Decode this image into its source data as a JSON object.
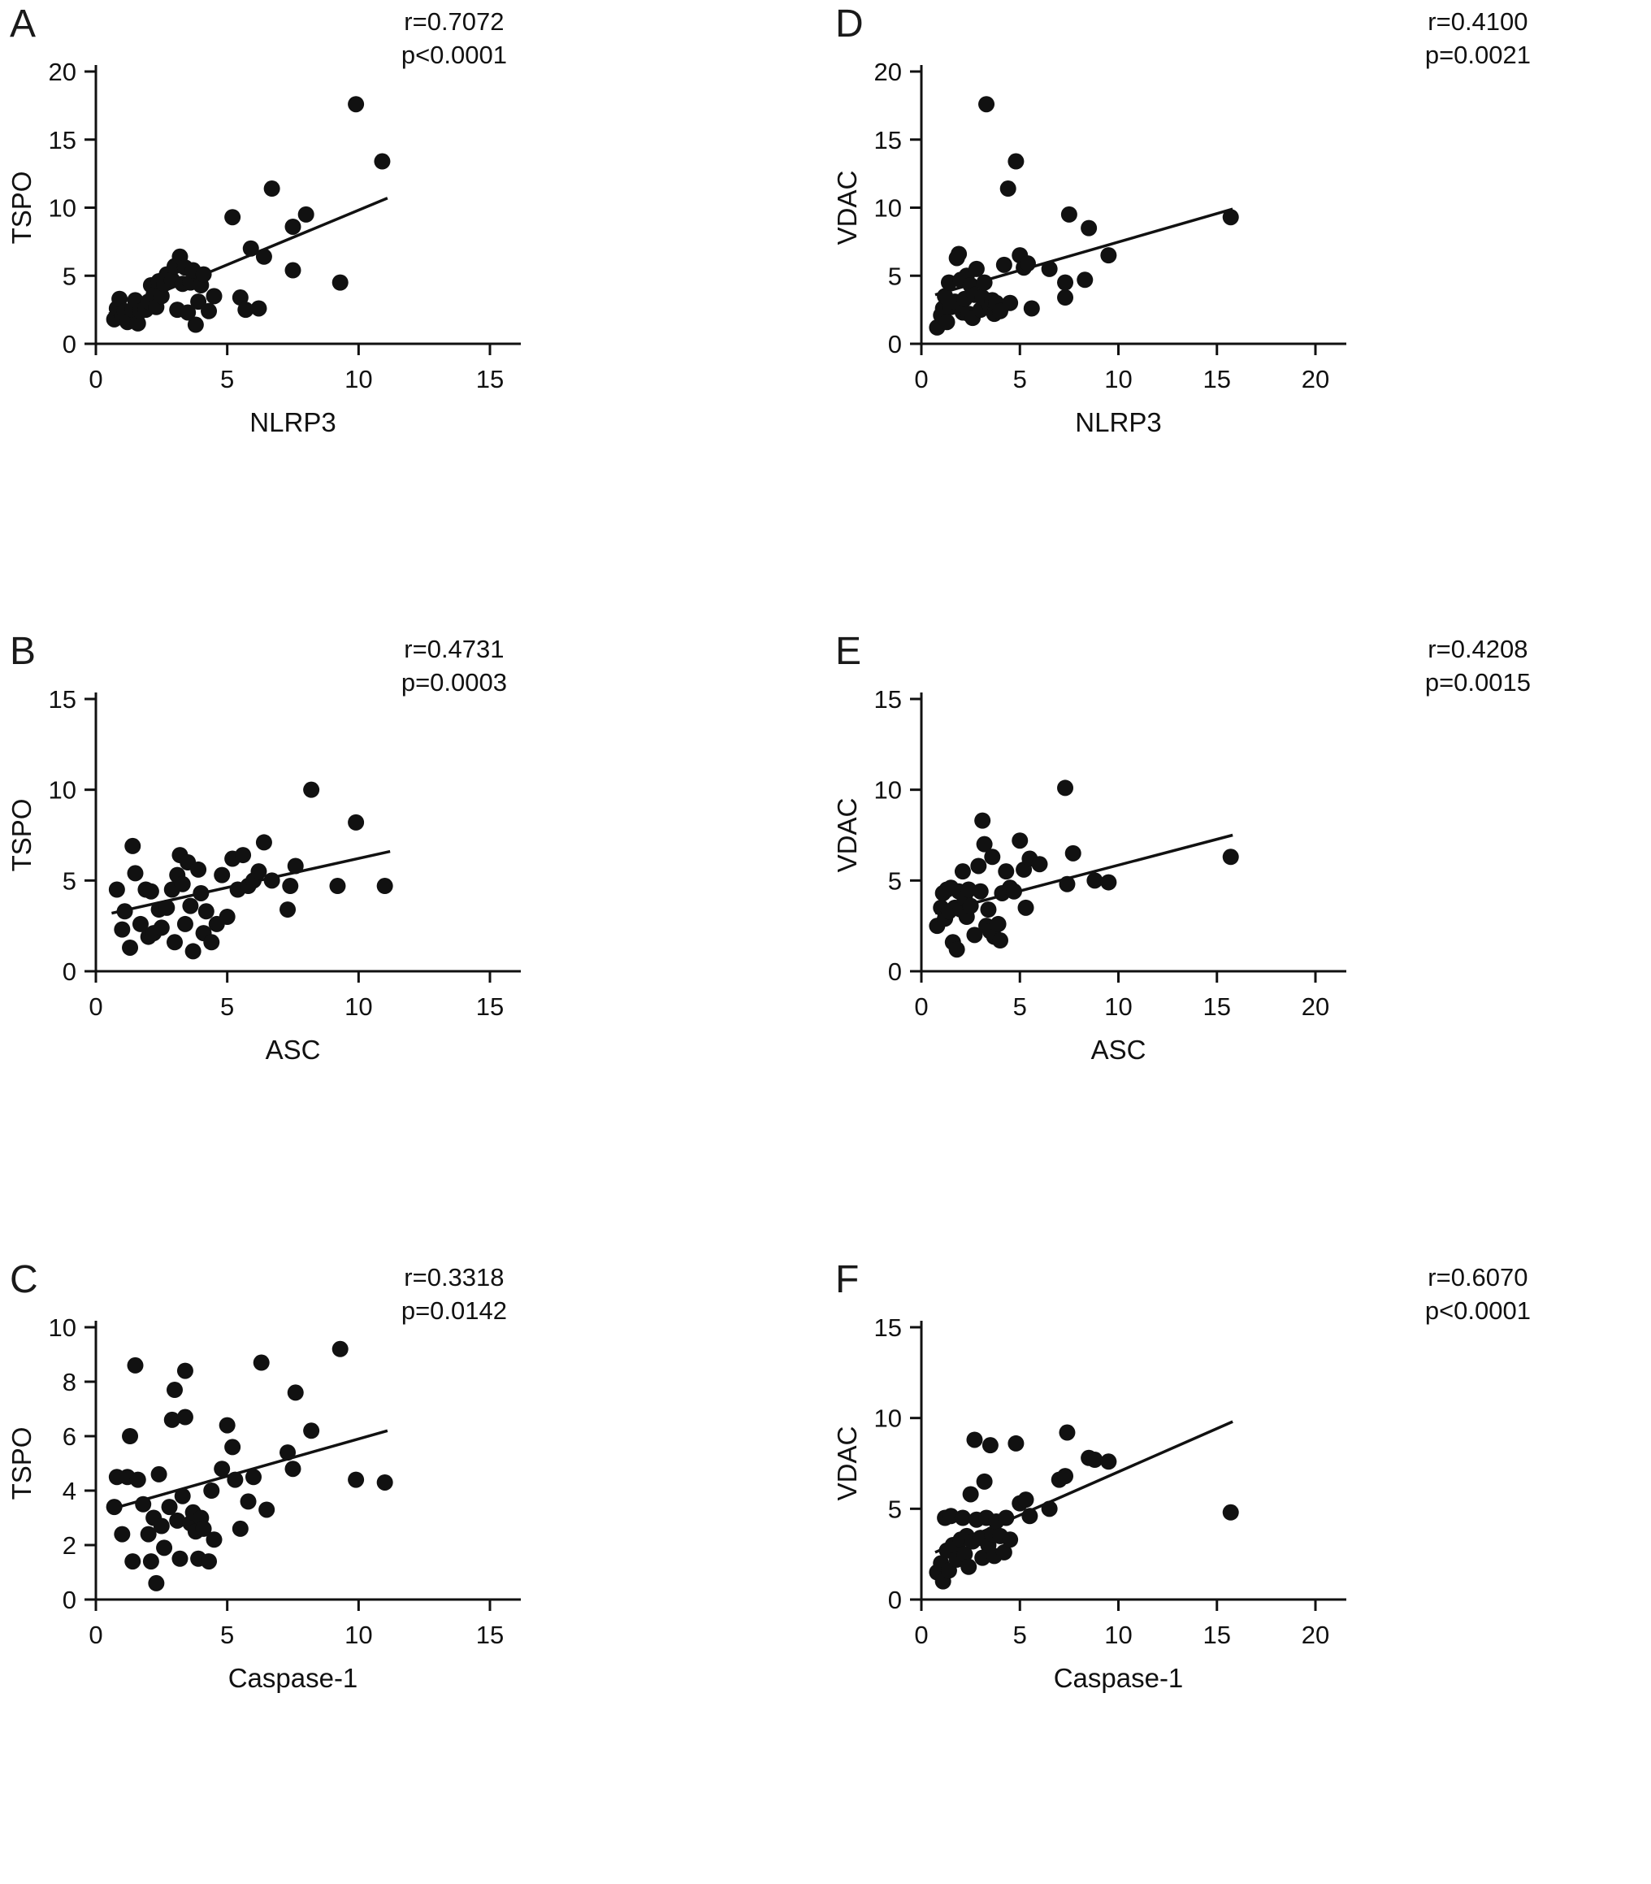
{
  "colors": {
    "ink": "#111111",
    "background": "#ffffff"
  },
  "chart_data": [
    {
      "panel": "A",
      "type": "scatter",
      "r_label": "r=0.7072",
      "p_label": "p<0.0001",
      "xlabel": "NLRP3",
      "ylabel": "TSPO",
      "xlim": [
        0,
        15
      ],
      "xticks": [
        0,
        5,
        10,
        15
      ],
      "ylim": [
        0,
        20
      ],
      "yticks": [
        0,
        5,
        10,
        15,
        20
      ],
      "trend": [
        [
          0.5,
          2.2
        ],
        [
          11.1,
          10.7
        ]
      ],
      "points": [
        [
          0.7,
          1.8
        ],
        [
          0.8,
          2.6
        ],
        [
          0.9,
          3.3
        ],
        [
          1.0,
          2.0
        ],
        [
          1.1,
          2.4
        ],
        [
          1.2,
          1.6
        ],
        [
          1.4,
          2.5
        ],
        [
          1.5,
          3.2
        ],
        [
          1.6,
          1.5
        ],
        [
          1.7,
          2.4
        ],
        [
          1.9,
          2.5
        ],
        [
          2.0,
          3.1
        ],
        [
          2.1,
          4.3
        ],
        [
          2.2,
          3.6
        ],
        [
          2.3,
          2.7
        ],
        [
          2.4,
          4.6
        ],
        [
          2.5,
          3.5
        ],
        [
          2.6,
          4.4
        ],
        [
          2.7,
          5.1
        ],
        [
          2.9,
          4.7
        ],
        [
          3.0,
          5.7
        ],
        [
          3.1,
          2.5
        ],
        [
          3.2,
          6.4
        ],
        [
          3.3,
          4.4
        ],
        [
          3.4,
          5.6
        ],
        [
          3.5,
          2.3
        ],
        [
          3.6,
          4.5
        ],
        [
          3.7,
          5.4
        ],
        [
          3.8,
          1.4
        ],
        [
          3.9,
          3.1
        ],
        [
          4.0,
          4.3
        ],
        [
          4.1,
          5.1
        ],
        [
          4.3,
          2.4
        ],
        [
          4.5,
          3.5
        ],
        [
          5.2,
          9.3
        ],
        [
          5.5,
          3.4
        ],
        [
          5.7,
          2.5
        ],
        [
          5.9,
          7.0
        ],
        [
          6.2,
          2.6
        ],
        [
          6.4,
          6.4
        ],
        [
          6.7,
          11.4
        ],
        [
          7.5,
          8.6
        ],
        [
          7.5,
          5.4
        ],
        [
          8.0,
          9.5
        ],
        [
          9.3,
          4.5
        ],
        [
          9.9,
          17.6
        ],
        [
          10.9,
          13.4
        ]
      ]
    },
    {
      "panel": "B",
      "type": "scatter",
      "r_label": "r=0.4731",
      "p_label": "p=0.0003",
      "xlabel": "ASC",
      "ylabel": "TSPO",
      "xlim": [
        0,
        15
      ],
      "xticks": [
        0,
        5,
        10,
        15
      ],
      "ylim": [
        0,
        15
      ],
      "yticks": [
        0,
        5,
        10,
        15
      ],
      "trend": [
        [
          0.6,
          3.2
        ],
        [
          11.2,
          6.6
        ]
      ],
      "points": [
        [
          0.8,
          4.5
        ],
        [
          1.0,
          2.3
        ],
        [
          1.1,
          3.3
        ],
        [
          1.3,
          1.3
        ],
        [
          1.4,
          6.9
        ],
        [
          1.5,
          5.4
        ],
        [
          1.7,
          2.6
        ],
        [
          1.9,
          4.5
        ],
        [
          2.0,
          1.9
        ],
        [
          2.1,
          4.4
        ],
        [
          2.2,
          2.1
        ],
        [
          2.4,
          3.4
        ],
        [
          2.5,
          2.4
        ],
        [
          2.7,
          3.5
        ],
        [
          2.9,
          4.5
        ],
        [
          3.0,
          1.6
        ],
        [
          3.1,
          5.3
        ],
        [
          3.2,
          6.4
        ],
        [
          3.3,
          4.8
        ],
        [
          3.4,
          2.6
        ],
        [
          3.5,
          6.0
        ],
        [
          3.6,
          3.6
        ],
        [
          3.7,
          1.1
        ],
        [
          3.9,
          5.6
        ],
        [
          4.0,
          4.3
        ],
        [
          4.1,
          2.1
        ],
        [
          4.2,
          3.3
        ],
        [
          4.4,
          1.6
        ],
        [
          4.6,
          2.6
        ],
        [
          4.8,
          5.3
        ],
        [
          5.0,
          3.0
        ],
        [
          5.2,
          6.2
        ],
        [
          5.4,
          4.5
        ],
        [
          5.6,
          6.4
        ],
        [
          5.8,
          4.7
        ],
        [
          6.0,
          5.0
        ],
        [
          6.2,
          5.5
        ],
        [
          6.4,
          7.1
        ],
        [
          6.7,
          5.0
        ],
        [
          7.3,
          3.4
        ],
        [
          7.4,
          4.7
        ],
        [
          7.6,
          5.8
        ],
        [
          8.2,
          10.0
        ],
        [
          9.2,
          4.7
        ],
        [
          9.9,
          8.2
        ],
        [
          11.0,
          4.7
        ]
      ]
    },
    {
      "panel": "C",
      "type": "scatter",
      "r_label": "r=0.3318",
      "p_label": "p=0.0142",
      "xlabel": "Caspase-1",
      "ylabel": "TSPO",
      "xlim": [
        0,
        15
      ],
      "xticks": [
        0,
        5,
        10,
        15
      ],
      "ylim": [
        0,
        10
      ],
      "yticks": [
        0,
        2,
        4,
        6,
        8,
        10
      ],
      "trend": [
        [
          0.5,
          3.3
        ],
        [
          11.1,
          6.2
        ]
      ],
      "points": [
        [
          0.7,
          3.4
        ],
        [
          0.8,
          4.5
        ],
        [
          1.0,
          2.4
        ],
        [
          1.2,
          4.5
        ],
        [
          1.3,
          6.0
        ],
        [
          1.4,
          1.4
        ],
        [
          1.5,
          8.6
        ],
        [
          1.6,
          4.4
        ],
        [
          1.8,
          3.5
        ],
        [
          2.0,
          2.4
        ],
        [
          2.1,
          1.4
        ],
        [
          2.2,
          3.0
        ],
        [
          2.3,
          0.6
        ],
        [
          2.4,
          4.6
        ],
        [
          2.5,
          2.7
        ],
        [
          2.6,
          1.9
        ],
        [
          2.8,
          3.4
        ],
        [
          2.9,
          6.6
        ],
        [
          3.0,
          7.7
        ],
        [
          3.1,
          2.9
        ],
        [
          3.2,
          1.5
        ],
        [
          3.3,
          3.8
        ],
        [
          3.4,
          6.7
        ],
        [
          3.4,
          8.4
        ],
        [
          3.6,
          2.8
        ],
        [
          3.7,
          3.2
        ],
        [
          3.8,
          2.5
        ],
        [
          3.9,
          1.5
        ],
        [
          4.0,
          3.0
        ],
        [
          4.1,
          2.6
        ],
        [
          4.3,
          1.4
        ],
        [
          4.4,
          4.0
        ],
        [
          4.5,
          2.2
        ],
        [
          4.8,
          4.8
        ],
        [
          5.0,
          6.4
        ],
        [
          5.2,
          5.6
        ],
        [
          5.3,
          4.4
        ],
        [
          5.5,
          2.6
        ],
        [
          5.8,
          3.6
        ],
        [
          6.0,
          4.5
        ],
        [
          6.3,
          8.7
        ],
        [
          6.5,
          3.3
        ],
        [
          7.3,
          5.4
        ],
        [
          7.5,
          4.8
        ],
        [
          7.6,
          7.6
        ],
        [
          8.2,
          6.2
        ],
        [
          9.3,
          9.2
        ],
        [
          9.9,
          4.4
        ],
        [
          11.0,
          4.3
        ]
      ]
    },
    {
      "panel": "D",
      "type": "scatter",
      "r_label": "r=0.4100",
      "p_label": "p=0.0021",
      "xlabel": "NLRP3",
      "ylabel": "VDAC",
      "xlim": [
        0,
        20
      ],
      "xticks": [
        0,
        5,
        10,
        15,
        20
      ],
      "ylim": [
        0,
        20
      ],
      "yticks": [
        0,
        5,
        10,
        15,
        20
      ],
      "trend": [
        [
          0.7,
          3.6
        ],
        [
          15.8,
          9.9
        ]
      ],
      "points": [
        [
          0.8,
          1.2
        ],
        [
          1.0,
          2.1
        ],
        [
          1.1,
          2.6
        ],
        [
          1.2,
          3.5
        ],
        [
          1.3,
          1.6
        ],
        [
          1.4,
          4.5
        ],
        [
          1.5,
          2.7
        ],
        [
          1.7,
          3.1
        ],
        [
          1.8,
          6.3
        ],
        [
          1.9,
          6.6
        ],
        [
          2.0,
          4.7
        ],
        [
          2.1,
          2.3
        ],
        [
          2.2,
          3.3
        ],
        [
          2.3,
          5.0
        ],
        [
          2.4,
          2.2
        ],
        [
          2.5,
          4.3
        ],
        [
          2.6,
          1.9
        ],
        [
          2.7,
          3.6
        ],
        [
          2.8,
          5.5
        ],
        [
          3.0,
          2.5
        ],
        [
          3.1,
          3.4
        ],
        [
          3.2,
          4.5
        ],
        [
          3.3,
          17.6
        ],
        [
          3.5,
          2.7
        ],
        [
          3.6,
          3.2
        ],
        [
          3.7,
          2.2
        ],
        [
          3.8,
          3.0
        ],
        [
          4.0,
          2.4
        ],
        [
          4.2,
          5.8
        ],
        [
          4.4,
          11.4
        ],
        [
          4.5,
          3.0
        ],
        [
          4.8,
          13.4
        ],
        [
          5.0,
          6.5
        ],
        [
          5.2,
          5.6
        ],
        [
          5.4,
          5.9
        ],
        [
          5.6,
          2.6
        ],
        [
          6.5,
          5.5
        ],
        [
          7.3,
          4.5
        ],
        [
          7.3,
          3.4
        ],
        [
          7.5,
          9.5
        ],
        [
          8.3,
          4.7
        ],
        [
          8.5,
          8.5
        ],
        [
          9.5,
          6.5
        ],
        [
          15.7,
          9.3
        ]
      ]
    },
    {
      "panel": "E",
      "type": "scatter",
      "r_label": "r=0.4208",
      "p_label": "p=0.0015",
      "xlabel": "ASC",
      "ylabel": "VDAC",
      "xlim": [
        0,
        20
      ],
      "xticks": [
        0,
        5,
        10,
        15,
        20
      ],
      "ylim": [
        0,
        15
      ],
      "yticks": [
        0,
        5,
        10,
        15
      ],
      "trend": [
        [
          0.7,
          3.2
        ],
        [
          15.8,
          7.5
        ]
      ],
      "points": [
        [
          0.8,
          2.5
        ],
        [
          1.0,
          3.5
        ],
        [
          1.1,
          4.3
        ],
        [
          1.2,
          2.9
        ],
        [
          1.3,
          4.5
        ],
        [
          1.4,
          3.3
        ],
        [
          1.5,
          4.6
        ],
        [
          1.6,
          1.6
        ],
        [
          1.7,
          3.5
        ],
        [
          1.8,
          1.2
        ],
        [
          1.9,
          4.4
        ],
        [
          2.0,
          3.4
        ],
        [
          2.1,
          5.5
        ],
        [
          2.2,
          4.0
        ],
        [
          2.3,
          3.0
        ],
        [
          2.4,
          4.5
        ],
        [
          2.5,
          3.6
        ],
        [
          2.7,
          2.0
        ],
        [
          2.9,
          5.8
        ],
        [
          3.0,
          4.4
        ],
        [
          3.1,
          8.3
        ],
        [
          3.2,
          7.0
        ],
        [
          3.3,
          2.5
        ],
        [
          3.4,
          3.4
        ],
        [
          3.5,
          2.2
        ],
        [
          3.6,
          6.3
        ],
        [
          3.7,
          1.9
        ],
        [
          3.9,
          2.6
        ],
        [
          4.0,
          1.7
        ],
        [
          4.1,
          4.3
        ],
        [
          4.3,
          5.5
        ],
        [
          4.5,
          4.6
        ],
        [
          4.7,
          4.4
        ],
        [
          5.0,
          7.2
        ],
        [
          5.2,
          5.6
        ],
        [
          5.3,
          3.5
        ],
        [
          5.5,
          6.2
        ],
        [
          6.0,
          5.9
        ],
        [
          7.3,
          10.1
        ],
        [
          7.4,
          4.8
        ],
        [
          7.7,
          6.5
        ],
        [
          8.8,
          5.0
        ],
        [
          9.5,
          4.9
        ],
        [
          15.7,
          6.3
        ]
      ]
    },
    {
      "panel": "F",
      "type": "scatter",
      "r_label": "r=0.6070",
      "p_label": "p<0.0001",
      "xlabel": "Caspase-1",
      "ylabel": "VDAC",
      "xlim": [
        0,
        20
      ],
      "xticks": [
        0,
        5,
        10,
        15,
        20
      ],
      "ylim": [
        0,
        15
      ],
      "yticks": [
        0,
        5,
        10,
        15
      ],
      "trend": [
        [
          0.7,
          2.6
        ],
        [
          15.8,
          9.8
        ]
      ],
      "points": [
        [
          0.8,
          1.5
        ],
        [
          1.0,
          2.0
        ],
        [
          1.1,
          1.0
        ],
        [
          1.2,
          4.5
        ],
        [
          1.3,
          2.7
        ],
        [
          1.4,
          1.6
        ],
        [
          1.5,
          4.6
        ],
        [
          1.6,
          3.0
        ],
        [
          1.8,
          2.2
        ],
        [
          2.0,
          3.3
        ],
        [
          2.1,
          4.5
        ],
        [
          2.2,
          2.5
        ],
        [
          2.3,
          3.5
        ],
        [
          2.4,
          1.8
        ],
        [
          2.5,
          5.8
        ],
        [
          2.6,
          3.2
        ],
        [
          2.7,
          8.8
        ],
        [
          2.8,
          4.4
        ],
        [
          3.0,
          3.4
        ],
        [
          3.1,
          2.3
        ],
        [
          3.2,
          6.5
        ],
        [
          3.3,
          4.5
        ],
        [
          3.4,
          3.0
        ],
        [
          3.5,
          8.5
        ],
        [
          3.6,
          3.6
        ],
        [
          3.7,
          2.4
        ],
        [
          3.8,
          4.3
        ],
        [
          4.0,
          3.5
        ],
        [
          4.2,
          2.6
        ],
        [
          4.3,
          4.5
        ],
        [
          4.5,
          3.3
        ],
        [
          4.8,
          8.6
        ],
        [
          5.0,
          5.3
        ],
        [
          5.3,
          5.5
        ],
        [
          5.5,
          4.6
        ],
        [
          6.5,
          5.0
        ],
        [
          7.0,
          6.6
        ],
        [
          7.3,
          6.8
        ],
        [
          7.4,
          9.2
        ],
        [
          8.5,
          7.8
        ],
        [
          8.8,
          7.7
        ],
        [
          9.5,
          7.6
        ],
        [
          15.7,
          4.8
        ]
      ]
    }
  ]
}
